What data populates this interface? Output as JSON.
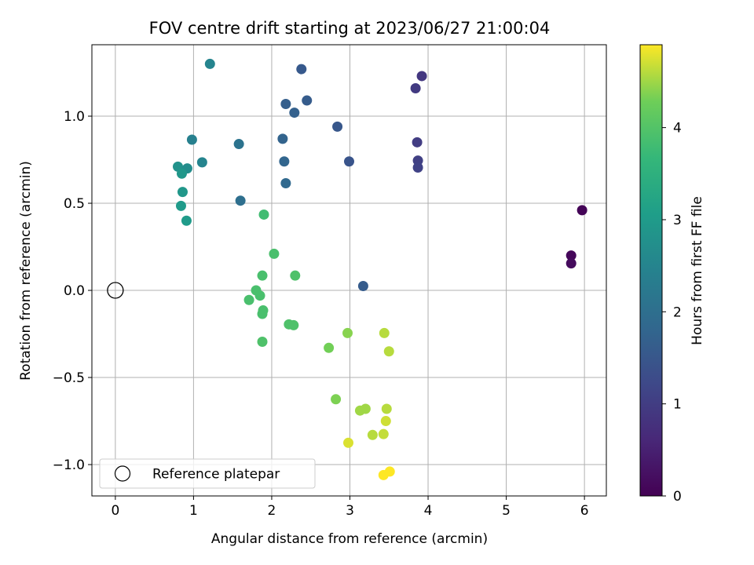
{
  "chart_data": {
    "type": "scatter",
    "title": "FOV centre drift starting at 2023/06/27 21:00:04",
    "xlabel": "Angular distance from reference (arcmin)",
    "ylabel": "Rotation from reference (arcmin)",
    "xlim": [
      -0.3,
      6.28
    ],
    "ylim": [
      -1.18,
      1.41
    ],
    "xticks": [
      0,
      1,
      2,
      3,
      4,
      5,
      6
    ],
    "xtick_labels": [
      "0",
      "1",
      "2",
      "3",
      "4",
      "5",
      "6"
    ],
    "yticks": [
      -1.0,
      -0.5,
      0.0,
      0.5,
      1.0
    ],
    "ytick_labels": [
      "−1.0",
      "−0.5",
      "0.0",
      "0.5",
      "1.0"
    ],
    "grid": true,
    "colormap": "viridis",
    "colorbar": {
      "label": "Hours from first FF file",
      "range": [
        0,
        4.9
      ],
      "ticks": [
        0,
        1,
        2,
        3,
        4
      ],
      "tick_labels": [
        "0",
        "1",
        "2",
        "3",
        "4"
      ]
    },
    "legend": {
      "position": "lower-left",
      "entries": [
        "Reference platepar"
      ]
    },
    "reference_point": {
      "x": 0,
      "y": 0,
      "label": "Reference platepar"
    },
    "points": [
      {
        "x": 5.97,
        "y": 0.46,
        "c": 0.05
      },
      {
        "x": 5.83,
        "y": 0.2,
        "c": 0.1
      },
      {
        "x": 5.83,
        "y": 0.155,
        "c": 0.15
      },
      {
        "x": 3.92,
        "y": 1.23,
        "c": 0.9
      },
      {
        "x": 3.84,
        "y": 1.16,
        "c": 0.95
      },
      {
        "x": 3.86,
        "y": 0.85,
        "c": 1.0
      },
      {
        "x": 3.87,
        "y": 0.745,
        "c": 1.05
      },
      {
        "x": 3.87,
        "y": 0.705,
        "c": 1.1
      },
      {
        "x": 2.38,
        "y": 1.27,
        "c": 1.55
      },
      {
        "x": 2.45,
        "y": 1.09,
        "c": 1.6
      },
      {
        "x": 2.18,
        "y": 1.07,
        "c": 1.65
      },
      {
        "x": 2.29,
        "y": 1.02,
        "c": 1.7
      },
      {
        "x": 2.84,
        "y": 0.94,
        "c": 1.5
      },
      {
        "x": 2.14,
        "y": 0.87,
        "c": 1.75
      },
      {
        "x": 2.99,
        "y": 0.74,
        "c": 1.45
      },
      {
        "x": 2.16,
        "y": 0.74,
        "c": 1.8
      },
      {
        "x": 2.18,
        "y": 0.615,
        "c": 1.85
      },
      {
        "x": 3.17,
        "y": 0.025,
        "c": 1.6
      },
      {
        "x": 1.58,
        "y": 0.84,
        "c": 2.1
      },
      {
        "x": 1.6,
        "y": 0.515,
        "c": 2.0
      },
      {
        "x": 1.21,
        "y": 1.3,
        "c": 2.5
      },
      {
        "x": 0.98,
        "y": 0.865,
        "c": 2.4
      },
      {
        "x": 1.11,
        "y": 0.735,
        "c": 2.5
      },
      {
        "x": 0.8,
        "y": 0.71,
        "c": 2.8
      },
      {
        "x": 0.92,
        "y": 0.7,
        "c": 2.7
      },
      {
        "x": 0.85,
        "y": 0.67,
        "c": 2.9
      },
      {
        "x": 0.86,
        "y": 0.565,
        "c": 2.9
      },
      {
        "x": 0.84,
        "y": 0.485,
        "c": 3.0
      },
      {
        "x": 0.91,
        "y": 0.4,
        "c": 3.0
      },
      {
        "x": 1.9,
        "y": 0.435,
        "c": 3.8
      },
      {
        "x": 2.03,
        "y": 0.21,
        "c": 3.9
      },
      {
        "x": 1.88,
        "y": 0.085,
        "c": 3.9
      },
      {
        "x": 2.3,
        "y": 0.085,
        "c": 3.95
      },
      {
        "x": 1.8,
        "y": 0.0,
        "c": 3.9
      },
      {
        "x": 1.85,
        "y": -0.03,
        "c": 3.9
      },
      {
        "x": 1.71,
        "y": -0.055,
        "c": 3.9
      },
      {
        "x": 1.89,
        "y": -0.115,
        "c": 3.9
      },
      {
        "x": 1.88,
        "y": -0.135,
        "c": 3.9
      },
      {
        "x": 2.22,
        "y": -0.195,
        "c": 3.95
      },
      {
        "x": 2.28,
        "y": -0.2,
        "c": 3.95
      },
      {
        "x": 1.88,
        "y": -0.295,
        "c": 3.95
      },
      {
        "x": 2.73,
        "y": -0.33,
        "c": 4.3
      },
      {
        "x": 2.97,
        "y": -0.245,
        "c": 4.4
      },
      {
        "x": 3.44,
        "y": -0.245,
        "c": 4.6
      },
      {
        "x": 3.5,
        "y": -0.35,
        "c": 4.6
      },
      {
        "x": 2.82,
        "y": -0.625,
        "c": 4.35
      },
      {
        "x": 3.13,
        "y": -0.69,
        "c": 4.5
      },
      {
        "x": 3.2,
        "y": -0.68,
        "c": 4.5
      },
      {
        "x": 3.47,
        "y": -0.68,
        "c": 4.6
      },
      {
        "x": 3.46,
        "y": -0.75,
        "c": 4.7
      },
      {
        "x": 3.29,
        "y": -0.83,
        "c": 4.6
      },
      {
        "x": 3.43,
        "y": -0.825,
        "c": 4.65
      },
      {
        "x": 2.98,
        "y": -0.875,
        "c": 4.75
      },
      {
        "x": 3.43,
        "y": -1.06,
        "c": 4.9
      },
      {
        "x": 3.51,
        "y": -1.04,
        "c": 4.9
      }
    ]
  }
}
